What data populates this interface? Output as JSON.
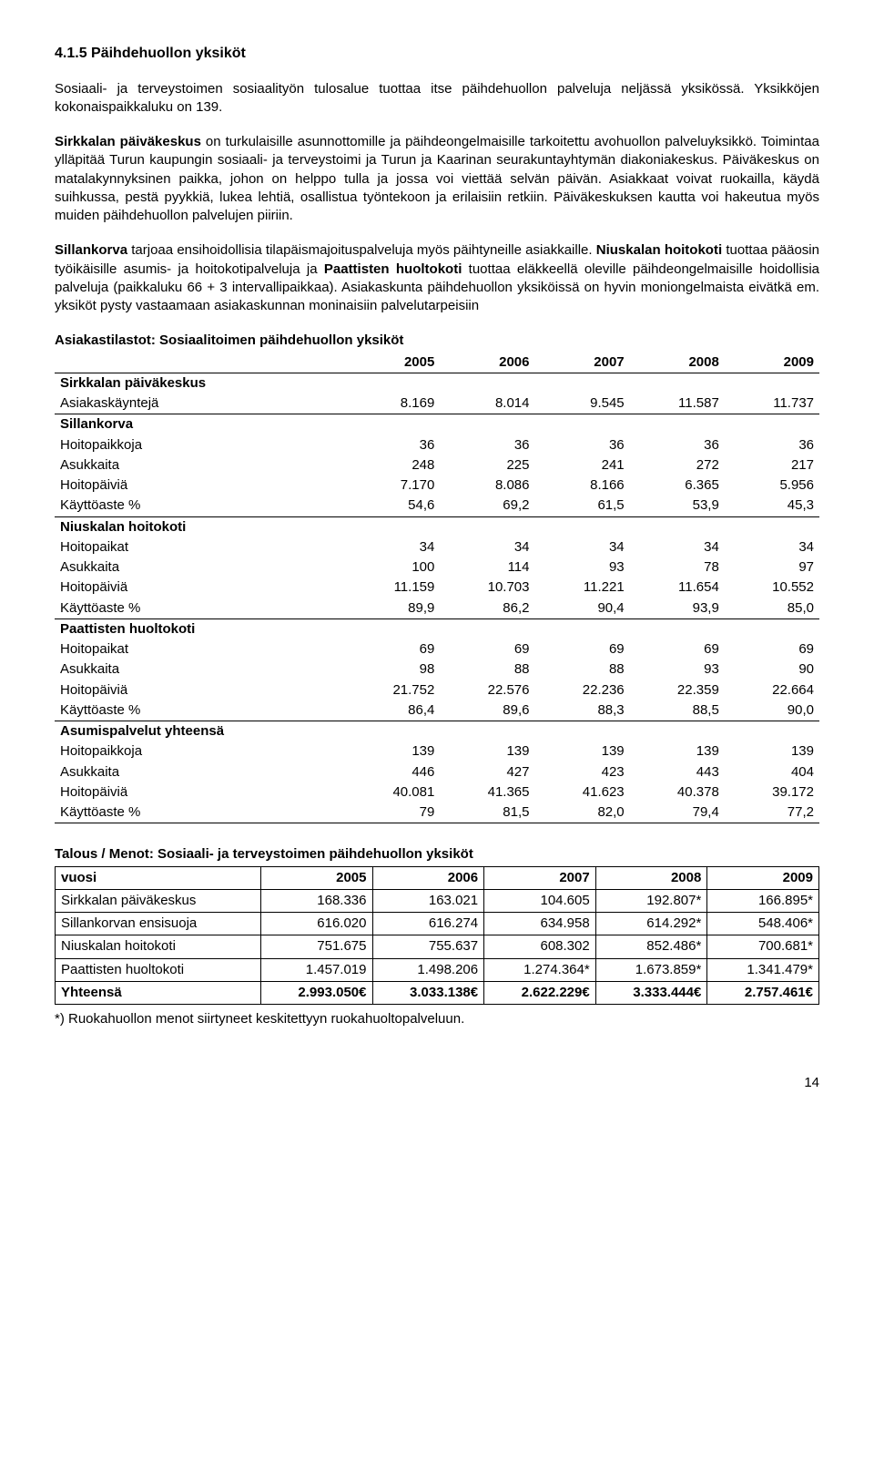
{
  "heading": "4.1.5 Päihdehuollon yksiköt",
  "para1": "Sosiaali- ja terveystoimen sosiaalityön tulosalue tuottaa itse päihdehuollon palveluja neljässä yksikössä. Yksikköjen kokonaispaikkaluku on 139.",
  "para2_a": "Sirkkalan päiväkeskus",
  "para2_b": " on turkulaisille asunnottomille ja päihdeongelmaisille tarkoitettu avohuollon palveluyksikkö. Toimintaa ylläpitää Turun kaupungin sosiaali- ja terveystoimi ja Turun ja Kaarinan seurakuntayhtymän diakoniakeskus. Päiväkeskus on matalakynnyksinen paikka, johon on helppo tulla ja jossa voi viettää selvän päivän. Asiakkaat voivat ruokailla, käydä suihkussa, pestä pyykkiä, lukea lehtiä, osallistua työntekoon ja erilaisiin retkiin. Päiväkeskuksen kautta voi hakeutua myös muiden päihdehuollon palvelujen piiriin.",
  "para3_a": "Sillankorva",
  "para3_b": " tarjoaa ensihoidollisia tilapäismajoituspalveluja myös päihtyneille asiakkaille. ",
  "para3_c": "Niuskalan hoitokoti",
  "para3_d": " tuottaa pääosin työikäisille asumis- ja hoitokotipalveluja ja ",
  "para3_e": "Paattisten huoltokoti",
  "para3_f": " tuottaa eläkkeellä oleville päihdeongelmaisille hoidollisia palveluja (paikkaluku 66 + 3 intervallipaikkaa). Asiakaskunta päihdehuollon yksiköissä on hyvin moniongelmaista eivätkä em. yksiköt pysty vastaamaan asiakaskunnan moninaisiin palvelutarpeisiin",
  "stats_title": "Asiakastilastot: Sosiaalitoimen päihdehuollon yksiköt",
  "years": [
    "2005",
    "2006",
    "2007",
    "2008",
    "2009"
  ],
  "groups": [
    {
      "name": "Sirkkalan päiväkeskus",
      "rows": [
        {
          "label": "Asiakaskäyntejä",
          "vals": [
            "8.169",
            "8.014",
            "9.545",
            "11.587",
            "11.737"
          ],
          "underline": true
        }
      ]
    },
    {
      "name": "Sillankorva",
      "rows": [
        {
          "label": "Hoitopaikkoja",
          "vals": [
            "36",
            "36",
            "36",
            "36",
            "36"
          ]
        },
        {
          "label": "Asukkaita",
          "vals": [
            "248",
            "225",
            "241",
            "272",
            "217"
          ]
        },
        {
          "label": "Hoitopäiviä",
          "vals": [
            "7.170",
            "8.086",
            "8.166",
            "6.365",
            "5.956"
          ]
        },
        {
          "label": "Käyttöaste %",
          "vals": [
            "54,6",
            "69,2",
            "61,5",
            "53,9",
            "45,3"
          ],
          "underline": true
        }
      ]
    },
    {
      "name": "Niuskalan hoitokoti",
      "rows": [
        {
          "label": "Hoitopaikat",
          "vals": [
            "34",
            "34",
            "34",
            "34",
            "34"
          ]
        },
        {
          "label": "Asukkaita",
          "vals": [
            "100",
            "114",
            "93",
            "78",
            "97"
          ]
        },
        {
          "label": "Hoitopäiviä",
          "vals": [
            "11.159",
            "10.703",
            "11.221",
            "11.654",
            "10.552"
          ]
        },
        {
          "label": "Käyttöaste %",
          "vals": [
            "89,9",
            "86,2",
            "90,4",
            "93,9",
            "85,0"
          ],
          "underline": true
        }
      ]
    },
    {
      "name": "Paattisten huoltokoti",
      "rows": [
        {
          "label": "Hoitopaikat",
          "vals": [
            "69",
            "69",
            "69",
            "69",
            "69"
          ]
        },
        {
          "label": "Asukkaita",
          "vals": [
            "98",
            "88",
            "88",
            "93",
            "90"
          ]
        },
        {
          "label": "Hoitopäiviä",
          "vals": [
            "21.752",
            "22.576",
            "22.236",
            "22.359",
            "22.664"
          ]
        },
        {
          "label": "Käyttöaste %",
          "vals": [
            "86,4",
            "89,6",
            "88,3",
            "88,5",
            "90,0"
          ],
          "underline": true
        }
      ]
    },
    {
      "name": "Asumispalvelut yhteensä",
      "rows": [
        {
          "label": "Hoitopaikkoja",
          "vals": [
            "139",
            "139",
            "139",
            "139",
            "139"
          ]
        },
        {
          "label": "Asukkaita",
          "vals": [
            "446",
            "427",
            "423",
            "443",
            "404"
          ]
        },
        {
          "label": "Hoitopäiviä",
          "vals": [
            "40.081",
            "41.365",
            "41.623",
            "40.378",
            "39.172"
          ]
        },
        {
          "label": "Käyttöaste %",
          "vals": [
            "79",
            "81,5",
            "82,0",
            "79,4",
            "77,2"
          ],
          "underline": true
        }
      ]
    }
  ],
  "exp_title": "Talous / Menot: Sosiaali- ja terveystoimen päihdehuollon yksiköt",
  "exp_header": [
    "vuosi",
    "2005",
    "2006",
    "2007",
    "2008",
    "2009"
  ],
  "exp_rows": [
    {
      "label": "Sirkkalan päiväkeskus",
      "vals": [
        "168.336",
        "163.021",
        "104.605",
        "192.807*",
        "166.895*"
      ]
    },
    {
      "label": "Sillankorvan ensisuoja",
      "vals": [
        "616.020",
        "616.274",
        "634.958",
        "614.292*",
        "548.406*"
      ]
    },
    {
      "label": "Niuskalan hoitokoti",
      "vals": [
        "751.675",
        "755.637",
        "608.302",
        "852.486*",
        "700.681*"
      ]
    },
    {
      "label": "Paattisten huoltokoti",
      "vals": [
        "1.457.019",
        "1.498.206",
        "1.274.364*",
        "1.673.859*",
        "1.341.479*"
      ]
    }
  ],
  "exp_total": {
    "label": "Yhteensä",
    "vals": [
      "2.993.050€",
      "3.033.138€",
      "2.622.229€",
      "3.333.444€",
      "2.757.461€"
    ]
  },
  "footnote": "*) Ruokahuollon menot siirtyneet keskitettyyn ruokahuoltopalveluun.",
  "page_number": "14"
}
